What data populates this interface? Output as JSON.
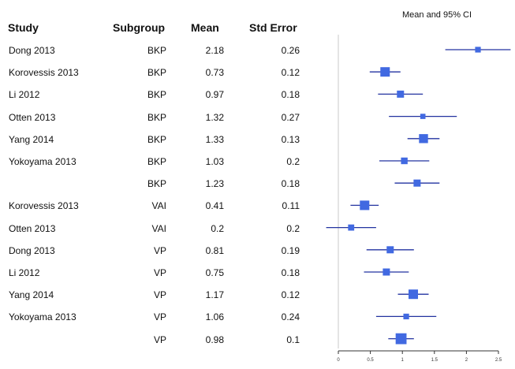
{
  "columns": {
    "study": "Study",
    "subgroup": "Subgroup",
    "mean": "Mean",
    "se": "Std Error"
  },
  "rows": [
    {
      "study": "Dong 2013",
      "subgroup": "BKP",
      "mean": "2.18",
      "se": "0.26"
    },
    {
      "study": "Korovessis 2013",
      "subgroup": "BKP",
      "mean": "0.73",
      "se": "0.12"
    },
    {
      "study": "Li 2012",
      "subgroup": "BKP",
      "mean": "0.97",
      "se": "0.18"
    },
    {
      "study": "Otten 2013",
      "subgroup": "BKP",
      "mean": "1.32",
      "se": "0.27"
    },
    {
      "study": "Yang 2014",
      "subgroup": "BKP",
      "mean": "1.33",
      "se": "0.13"
    },
    {
      "study": "Yokoyama 2013",
      "subgroup": "BKP",
      "mean": "1.03",
      "se": "0.2"
    },
    {
      "study": "",
      "subgroup": "BKP",
      "mean": "1.23",
      "se": "0.18"
    },
    {
      "study": "Korovessis 2013",
      "subgroup": "VAI",
      "mean": "0.41",
      "se": "0.11"
    },
    {
      "study": "Otten 2013",
      "subgroup": "VAI",
      "mean": "0.2",
      "se": "0.2"
    },
    {
      "study": "Dong 2013",
      "subgroup": "VP",
      "mean": "0.81",
      "se": "0.19"
    },
    {
      "study": "Li 2012",
      "subgroup": "VP",
      "mean": "0.75",
      "se": "0.18"
    },
    {
      "study": "Yang 2014",
      "subgroup": "VP",
      "mean": "1.17",
      "se": "0.12"
    },
    {
      "study": "Yokoyama 2013",
      "subgroup": "VP",
      "mean": "1.06",
      "se": "0.24"
    },
    {
      "study": "",
      "subgroup": "VP",
      "mean": "0.98",
      "se": "0.1"
    }
  ],
  "chart_data": {
    "type": "forest",
    "title": "Mean and 95% CI",
    "xlim": [
      0,
      2.5
    ],
    "xticks": [
      0,
      0.5,
      1,
      1.5,
      2,
      2.5
    ],
    "xtick_labels": [
      "0",
      "0.5",
      "1",
      "1.5",
      "2",
      "2.5"
    ],
    "reference_line": 0,
    "marker_color": "#4169e1",
    "line_color": "#2333a0",
    "points": [
      {
        "mean": 2.18,
        "lower": 1.67,
        "upper": 2.69,
        "weight": 0.6
      },
      {
        "mean": 0.73,
        "lower": 0.49,
        "upper": 0.97,
        "weight": 1.0
      },
      {
        "mean": 0.97,
        "lower": 0.62,
        "upper": 1.32,
        "weight": 0.75
      },
      {
        "mean": 1.32,
        "lower": 0.79,
        "upper": 1.85,
        "weight": 0.55
      },
      {
        "mean": 1.33,
        "lower": 1.08,
        "upper": 1.58,
        "weight": 0.95
      },
      {
        "mean": 1.03,
        "lower": 0.64,
        "upper": 1.42,
        "weight": 0.7
      },
      {
        "mean": 1.23,
        "lower": 0.88,
        "upper": 1.58,
        "weight": 0.75
      },
      {
        "mean": 0.41,
        "lower": 0.19,
        "upper": 0.63,
        "weight": 1.0
      },
      {
        "mean": 0.2,
        "lower": -0.19,
        "upper": 0.59,
        "weight": 0.65
      },
      {
        "mean": 0.81,
        "lower": 0.44,
        "upper": 1.18,
        "weight": 0.75
      },
      {
        "mean": 0.75,
        "lower": 0.4,
        "upper": 1.1,
        "weight": 0.75
      },
      {
        "mean": 1.17,
        "lower": 0.93,
        "upper": 1.41,
        "weight": 1.0
      },
      {
        "mean": 1.06,
        "lower": 0.59,
        "upper": 1.53,
        "weight": 0.6
      },
      {
        "mean": 0.98,
        "lower": 0.78,
        "upper": 1.18,
        "weight": 1.15
      }
    ]
  }
}
